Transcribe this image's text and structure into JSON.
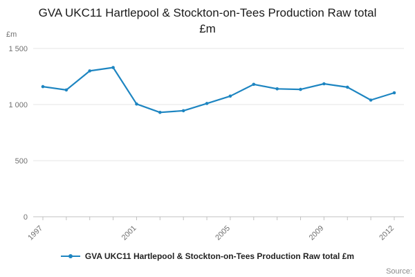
{
  "title": "GVA UKC11 Hartlepool & Stockton-on-Tees Production Raw total £m",
  "y_axis_unit": "£m",
  "source_label": "Source:",
  "legend": {
    "label": "GVA UKC11 Hartlepool & Stockton-on-Tees Production Raw total £m"
  },
  "colors": {
    "line": "#1d85c1",
    "grid": "#e6e6e6",
    "axis": "#c0c0c0",
    "text": "#707070",
    "title": "#1a1a1a",
    "source": "#8a8a8a"
  },
  "chart_data": {
    "type": "line",
    "title": "GVA UKC11 Hartlepool & Stockton-on-Tees Production Raw total £m",
    "xlabel": "",
    "ylabel": "£m",
    "x": [
      1997,
      1998,
      1999,
      2000,
      2001,
      2002,
      2003,
      2004,
      2005,
      2006,
      2007,
      2008,
      2009,
      2010,
      2011,
      2012
    ],
    "series": [
      {
        "name": "GVA UKC11 Hartlepool & Stockton-on-Tees Production Raw total £m",
        "values": [
          1160,
          1130,
          1300,
          1330,
          1005,
          930,
          945,
          1010,
          1075,
          1180,
          1140,
          1135,
          1185,
          1155,
          1040,
          1105
        ]
      }
    ],
    "ylim": [
      0,
      1500
    ],
    "yticks": [
      0,
      500,
      1000,
      1500
    ],
    "ytick_labels": [
      "0",
      "500",
      "1 000",
      "1 500"
    ],
    "xtick_labels": [
      "1997",
      "2001",
      "2005",
      "2009",
      "2012"
    ],
    "grid": true,
    "legend_position": "bottom"
  }
}
